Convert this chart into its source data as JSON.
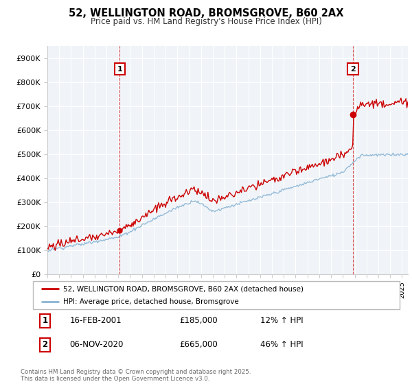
{
  "title": "52, WELLINGTON ROAD, BROMSGROVE, B60 2AX",
  "subtitle": "Price paid vs. HM Land Registry's House Price Index (HPI)",
  "legend_label_red": "52, WELLINGTON ROAD, BROMSGROVE, B60 2AX (detached house)",
  "legend_label_blue": "HPI: Average price, detached house, Bromsgrove",
  "annotation1_label": "1",
  "annotation1_date": "16-FEB-2001",
  "annotation1_price": "£185,000",
  "annotation1_hpi": "12% ↑ HPI",
  "annotation1_year": 2001.12,
  "annotation1_value": 185000,
  "annotation2_label": "2",
  "annotation2_date": "06-NOV-2020",
  "annotation2_price": "£665,000",
  "annotation2_hpi": "46% ↑ HPI",
  "annotation2_year": 2020.85,
  "annotation2_value": 665000,
  "footer": "Contains HM Land Registry data © Crown copyright and database right 2025.\nThis data is licensed under the Open Government Licence v3.0.",
  "red_color": "#cc0000",
  "blue_color": "#8ab4d4",
  "ylim": [
    0,
    950000
  ],
  "yticks": [
    0,
    100000,
    200000,
    300000,
    400000,
    500000,
    600000,
    700000,
    800000,
    900000
  ],
  "ytick_labels": [
    "£0",
    "£100K",
    "£200K",
    "£300K",
    "£400K",
    "£500K",
    "£600K",
    "£700K",
    "£800K",
    "£900K"
  ],
  "xlim_start": 1995.0,
  "xlim_end": 2025.5,
  "background_color": "#f0f4f8"
}
